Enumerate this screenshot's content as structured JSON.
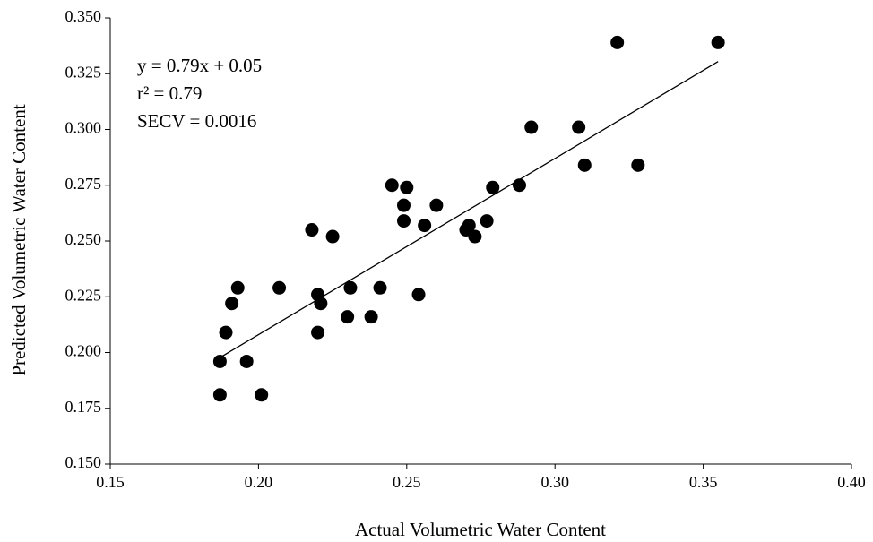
{
  "chart_data": {
    "type": "scatter",
    "x_label": "Actual Volumetric Water Content",
    "y_label": "Predicted Volumetric Water Content",
    "annotations": [
      "y = 0.79x + 0.05",
      "r² = 0.79",
      "SECV = 0.0016"
    ],
    "fit": {
      "slope": 0.79,
      "intercept": 0.05,
      "x_range": [
        0.187,
        0.355
      ]
    },
    "color": "#000000",
    "x": [
      0.187,
      0.187,
      0.189,
      0.191,
      0.193,
      0.196,
      0.201,
      0.207,
      0.218,
      0.22,
      0.22,
      0.221,
      0.225,
      0.23,
      0.231,
      0.238,
      0.241,
      0.245,
      0.249,
      0.249,
      0.25,
      0.254,
      0.256,
      0.26,
      0.27,
      0.271,
      0.273,
      0.277,
      0.279,
      0.288,
      0.292,
      0.308,
      0.31,
      0.321,
      0.328,
      0.355
    ],
    "values": [
      0.181,
      0.196,
      0.209,
      0.222,
      0.229,
      0.196,
      0.181,
      0.229,
      0.255,
      0.209,
      0.226,
      0.222,
      0.252,
      0.216,
      0.229,
      0.216,
      0.229,
      0.275,
      0.266,
      0.259,
      0.274,
      0.226,
      0.257,
      0.266,
      0.255,
      0.257,
      0.252,
      0.259,
      0.274,
      0.275,
      0.301,
      0.301,
      0.284,
      0.339,
      0.284,
      0.339
    ],
    "xlim": [
      0.15,
      0.4
    ],
    "xticks": [
      0.15,
      {
        "value": 0.2,
        "label": "0.20"
      },
      0.25,
      {
        "value": 0.3,
        "label": "0.30"
      },
      0.35,
      {
        "value": 0.4,
        "label": "0.40"
      }
    ],
    "ylim": [
      0.15,
      0.35
    ],
    "yticks": [
      {
        "value": 0.15,
        "label": "0.150"
      },
      0.175,
      {
        "value": 0.2,
        "label": "0.200"
      },
      0.225,
      {
        "value": 0.25,
        "label": "0.250"
      },
      0.275,
      {
        "value": 0.3,
        "label": "0.300"
      },
      0.325,
      {
        "value": 0.35,
        "label": "0.350"
      }
    ],
    "grid": false
  }
}
